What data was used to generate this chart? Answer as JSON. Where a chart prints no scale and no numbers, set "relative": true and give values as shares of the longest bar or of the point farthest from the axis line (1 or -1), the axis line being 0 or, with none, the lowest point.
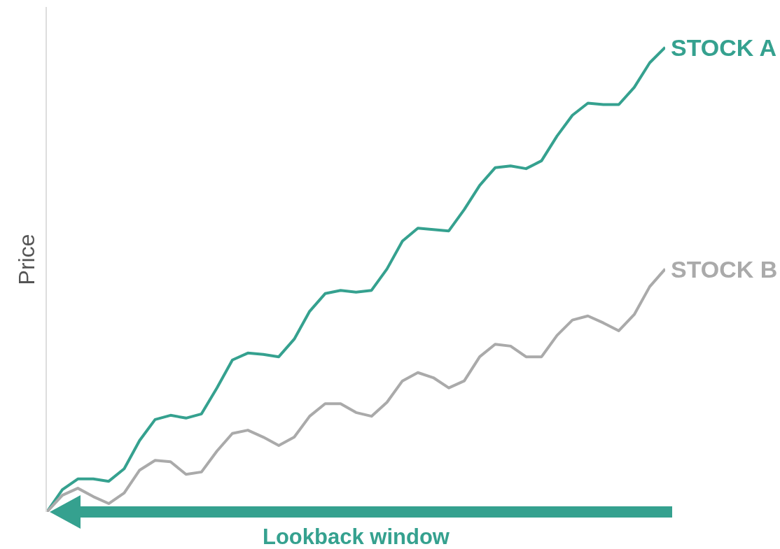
{
  "chart_data": {
    "type": "line",
    "relative": true,
    "ylabel": "Price",
    "annotations": [
      "Lookback window"
    ],
    "legend": false,
    "grid": false,
    "marker": "none",
    "line_style": "solid",
    "categories": [
      null,
      null,
      null,
      null,
      null,
      null,
      null,
      null,
      null,
      null,
      null,
      null,
      null,
      null,
      null,
      null,
      null,
      null,
      null,
      null,
      null,
      null,
      null,
      null,
      null,
      null,
      null,
      null,
      null,
      null,
      null,
      null,
      null,
      null,
      null,
      null,
      null,
      null,
      null,
      null,
      null
    ],
    "series": [
      {
        "name": "STOCK A",
        "color": "#35a18f",
        "values": [
          0,
          0.048,
          0.071,
          0.071,
          0.066,
          0.093,
          0.154,
          0.199,
          0.208,
          0.202,
          0.211,
          0.267,
          0.327,
          0.342,
          0.339,
          0.334,
          0.372,
          0.432,
          0.47,
          0.477,
          0.473,
          0.477,
          0.523,
          0.583,
          0.611,
          0.608,
          0.605,
          0.651,
          0.703,
          0.741,
          0.745,
          0.739,
          0.756,
          0.809,
          0.854,
          0.88,
          0.877,
          0.877,
          0.914,
          0.967,
          1
        ]
      },
      {
        "name": "STOCK B",
        "color": "#aaaaaa",
        "values": [
          0,
          0.036,
          0.051,
          0.033,
          0.018,
          0.041,
          0.09,
          0.111,
          0.108,
          0.081,
          0.086,
          0.131,
          0.169,
          0.176,
          0.161,
          0.143,
          0.161,
          0.206,
          0.233,
          0.233,
          0.214,
          0.206,
          0.236,
          0.282,
          0.3,
          0.289,
          0.267,
          0.282,
          0.334,
          0.361,
          0.357,
          0.334,
          0.334,
          0.38,
          0.413,
          0.422,
          0.407,
          0.39,
          0.425,
          0.485,
          0.523
        ]
      }
    ]
  }
}
